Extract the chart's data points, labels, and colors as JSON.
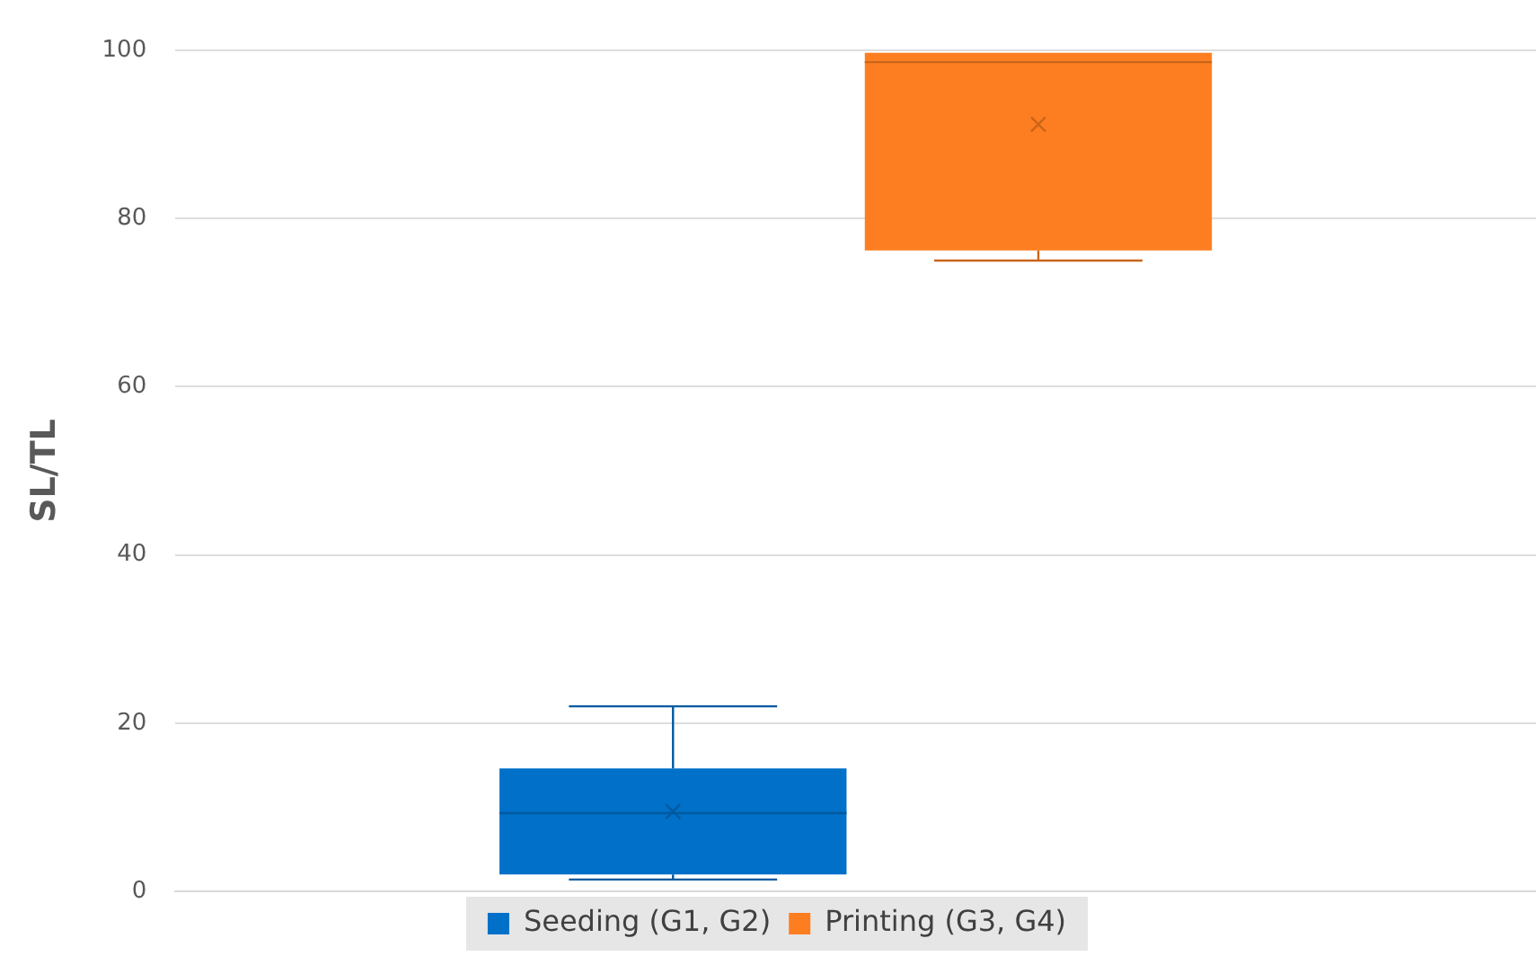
{
  "chart_data": {
    "type": "box",
    "ylabel": "SL/TL",
    "categories": [
      null
    ],
    "series": [
      {
        "name": "Seeding (G1, G2)",
        "color": "#0070c8",
        "boxes": [
          {
            "low": 1.4,
            "q1": 2.0,
            "median": 9.3,
            "q3": 14.6,
            "high": 22.0,
            "mean": 9.5
          }
        ]
      },
      {
        "name": "Printing (G3, G4)",
        "color": "#fd7e21",
        "boxes": [
          {
            "low": 75.0,
            "q1": 76.2,
            "median": 98.6,
            "q3": 99.7,
            "high": 99.7,
            "mean": 91.2
          }
        ]
      }
    ],
    "ylim": [
      0,
      100
    ],
    "yticks": [
      0,
      20,
      40,
      60,
      80,
      100
    ],
    "grid": "y",
    "legend": "bottom",
    "tick_labels": "y"
  }
}
